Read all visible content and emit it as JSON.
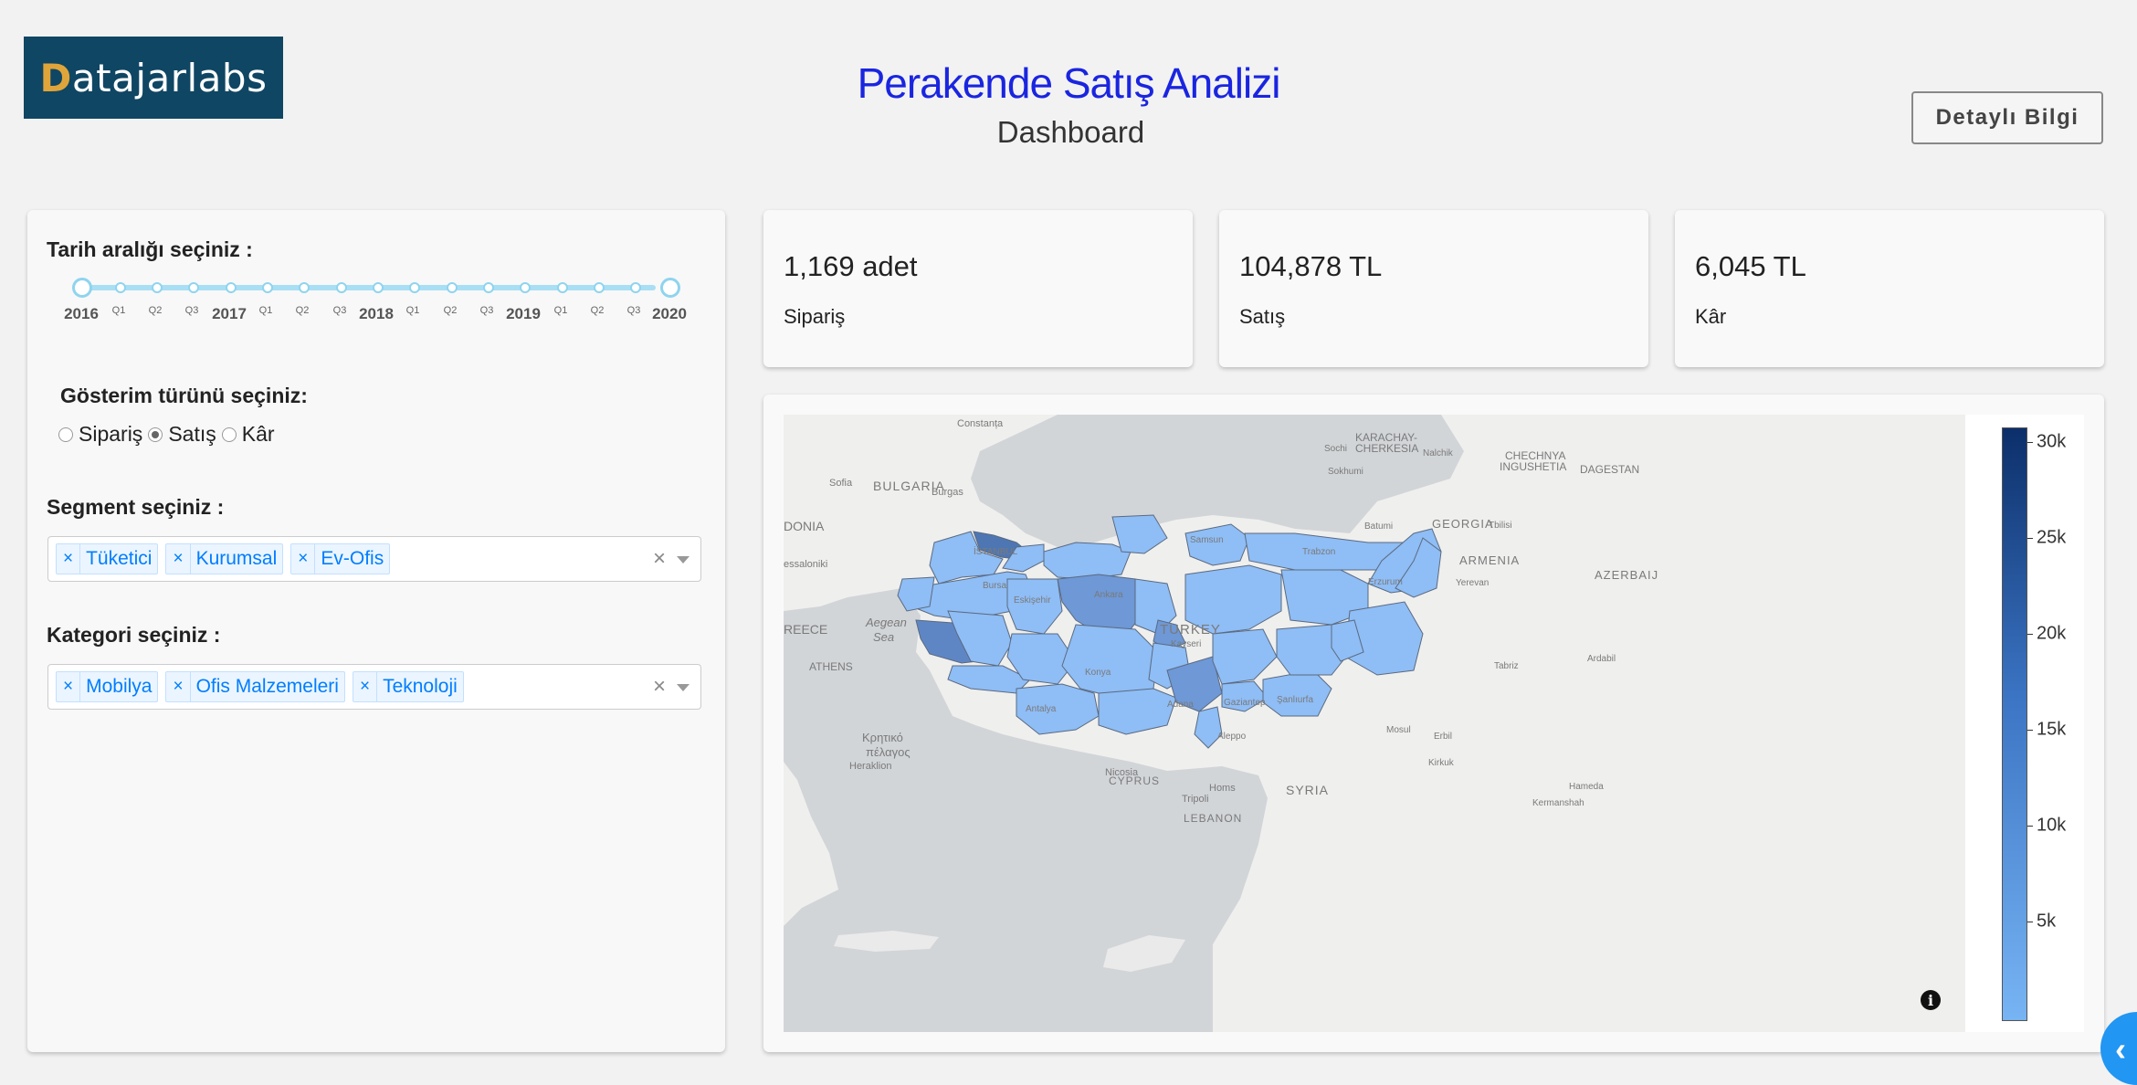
{
  "header": {
    "logo_text_first": "D",
    "logo_text_rest": "atajarlabs",
    "title": "Perakende Satış Analizi",
    "subtitle": "Dashboard",
    "detail_button": "Detaylı Bilgi"
  },
  "filters": {
    "date_label": "Tarih aralığı seçiniz :",
    "date_marks": [
      "2016",
      "2017",
      "2018",
      "2019",
      "2020"
    ],
    "quarter_marks": [
      "Q1",
      "Q2",
      "Q3"
    ],
    "display_label": "Gösterim türünü seçiniz:",
    "display_options": [
      "Sipariş",
      "Satış",
      "Kâr"
    ],
    "display_selected": "Satış",
    "segment_label": "Segment seçiniz :",
    "segments": [
      "Tüketici",
      "Kurumsal",
      "Ev-Ofis"
    ],
    "category_label": "Kategori seçiniz :",
    "categories": [
      "Mobilya",
      "Ofis Malzemeleri",
      "Teknoloji"
    ],
    "remove_symbol": "×",
    "clear_symbol": "×"
  },
  "kpis": [
    {
      "value": "1,169 adet",
      "label": "Sipariş"
    },
    {
      "value": "104,878 TL",
      "label": "Satış"
    },
    {
      "value": "6,045 TL",
      "label": "Kâr"
    }
  ],
  "map": {
    "colorbar_ticks": [
      "30k",
      "25k",
      "20k",
      "15k",
      "10k",
      "5k"
    ],
    "colors": {
      "low": "#77b4f4",
      "mid": "#3b74c3",
      "high": "#0c2f6a"
    },
    "labels": {
      "constanta": "Constanța",
      "bulgaria": "BULGARIA",
      "sofia": "Sofia",
      "burgas": "Burgas",
      "donia": "DONIA",
      "thessaloniki": "essaloniki",
      "reece": "REECE",
      "aegean1": "Aegean",
      "aegean2": "Sea",
      "athens": "ATHENS",
      "crete1": "Κρητικό",
      "crete2": "πέλαγος",
      "heraklion": "Heraklion",
      "istanbul": "İSTANBUL",
      "bursa": "Bursa",
      "eskisehir": "Eskişehir",
      "ankara": "Ankara",
      "samsun": "Samsun",
      "turkey": "TURKEY",
      "kayseri": "Kayseri",
      "konya": "Konya",
      "antalya": "Antalya",
      "adana": "Adana",
      "gaziantep": "Gaziantep",
      "sanliurfa": "Şanlıurfa",
      "trabzon": "Trabzon",
      "erzurum": "Erzurum",
      "aleppo": "Aleppo",
      "nicosia": "Nicosia",
      "cyprus": "CYPRUS",
      "homs": "Homs",
      "syria": "SYRIA",
      "tripoli": "Tripoli",
      "lebanon": "LEBANON",
      "karachay1": "KARACHAY-",
      "karachay2": "CHERKESIA",
      "nalchik": "Nalchik",
      "chechnya1": "CHECHNYA",
      "chechnya2": "INGUSHETIA",
      "dagestan": "DAGESTAN",
      "sochi": "Sochi",
      "sokhumi": "Sokhumi",
      "batumi": "Batumi",
      "georgia": "GEORGIA",
      "tbilisi": "Tbilisi",
      "armenia": "ARMENIA",
      "yerevan": "Yerevan",
      "azerbaijan": "AZERBAIJ",
      "tabriz": "Tabriz",
      "ardabil": "Ardabil",
      "mosul": "Mosul",
      "erbil": "Erbil",
      "kirkuk": "Kirkuk",
      "hameda": "Hameda",
      "kermanshah": "Kermanshah"
    }
  }
}
